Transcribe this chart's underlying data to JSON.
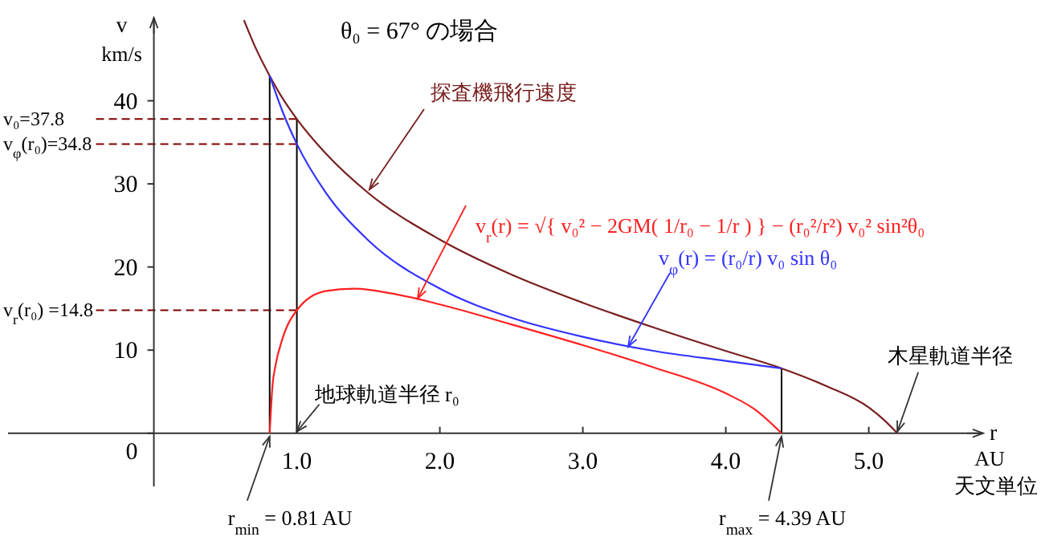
{
  "chart_data": {
    "type": "line",
    "title": "θ₀ = 67° の場合",
    "xlabel": "r AU 天文単位",
    "ylabel": "v km/s",
    "xlim": [
      -1.02,
      5.8
    ],
    "ylim": [
      -6.4,
      50
    ],
    "xticks": [
      {
        "value": 1,
        "label": "1.0"
      },
      {
        "value": 2,
        "label": "2.0"
      },
      {
        "value": 3,
        "label": "3.0"
      },
      {
        "value": 4,
        "label": "4.0"
      },
      {
        "value": 5,
        "label": "5.0"
      }
    ],
    "yticks": [
      0,
      10,
      20,
      30,
      40
    ],
    "marker": "none",
    "line_style": "solid",
    "series": [
      {
        "name": "探査機飛行速度",
        "color": "#7a1f1f",
        "x": [
          0.63,
          0.7,
          0.81,
          0.9,
          1.0,
          1.2,
          1.5,
          2.0,
          2.5,
          3.0,
          3.5,
          4.0,
          4.39,
          4.7,
          5.0,
          5.1,
          5.2
        ],
        "values": [
          49.7,
          46.8,
          43.0,
          40.3,
          37.8,
          33.7,
          28.9,
          23.3,
          19.1,
          15.7,
          12.7,
          9.9,
          7.8,
          5.7,
          3.1,
          1.7,
          0
        ]
      },
      {
        "name": "v$_{r}$(r) = √{ v₀² − 2GM( 1/r₀ − 1/r ) } − (r₀²/r²) v₀² sin²θ₀",
        "color": "#ff2020",
        "x": [
          0.81,
          0.83,
          0.85,
          0.9,
          1.0,
          1.2,
          1.4,
          1.7,
          2.0,
          2.5,
          3.0,
          3.5,
          4.0,
          4.2,
          4.39
        ],
        "values": [
          0,
          5.8,
          8.1,
          11.4,
          14.8,
          17.1,
          17.4,
          16.7,
          15.5,
          13.1,
          10.6,
          7.9,
          4.8,
          2.9,
          0
        ]
      },
      {
        "name": "v$_{φ}$(r) = (r₀/r) v₀ sin θ₀",
        "color": "#3333ff",
        "x": [
          0.81,
          0.9,
          1.0,
          1.2,
          1.5,
          2.0,
          2.5,
          3.0,
          3.5,
          4.0,
          4.39
        ],
        "values": [
          43.0,
          38.7,
          34.8,
          29.0,
          23.2,
          17.4,
          13.9,
          11.6,
          9.9,
          8.7,
          7.8
        ]
      }
    ],
    "ref_lines": [
      {
        "axis": "y",
        "value": 37.8,
        "label": "v₀=37.8",
        "color": "#800000",
        "line_style": "dashed"
      },
      {
        "axis": "y",
        "value": 34.8,
        "label": "v$_{φ}$(r₀)=34.8",
        "color": "#800000",
        "line_style": "dashed"
      },
      {
        "axis": "y",
        "value": 14.8,
        "label": "v$_{r}$(r₀) =14.8",
        "color": "#800000",
        "line_style": "dashed"
      },
      {
        "axis": "x",
        "value": 0.81,
        "color": "#000000",
        "line_style": "solid"
      },
      {
        "axis": "x",
        "value": 1.0,
        "color": "#000000",
        "line_style": "solid"
      },
      {
        "axis": "x",
        "value": 4.39,
        "color": "#000000",
        "line_style": "solid"
      }
    ],
    "annotations": [
      {
        "text": "地球軌道半径 r₀",
        "x": 1.0,
        "y": 0
      },
      {
        "text": "r$_{min}$ = 0.81 AU",
        "x": 0.81,
        "y": 0
      },
      {
        "text": "r$_{max}$ = 4.39 AU",
        "x": 4.39,
        "y": 0
      },
      {
        "text": "木星軌道半径",
        "x": 5.2,
        "y": 0
      }
    ]
  }
}
